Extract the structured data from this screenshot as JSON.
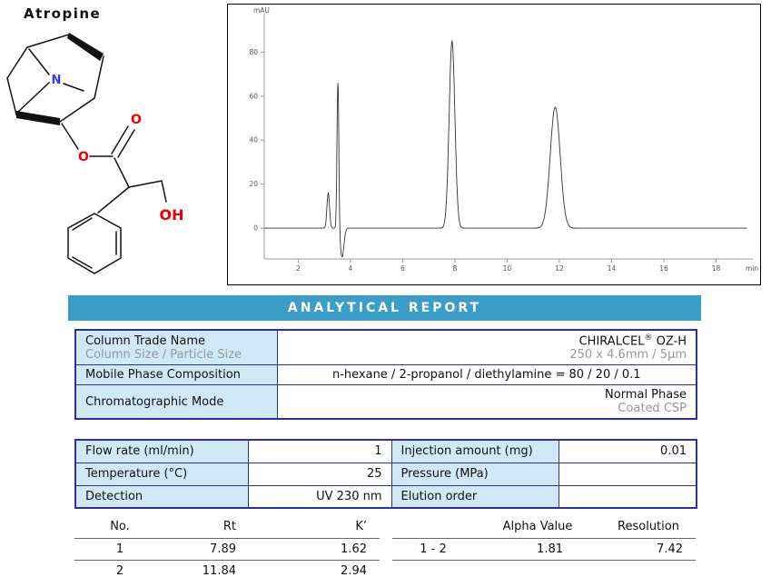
{
  "molecule": {
    "title": "Atropine",
    "n_label": "N",
    "ester_o_label": "O",
    "carbonyl_o_label": "O",
    "oh_label": "OH"
  },
  "report": {
    "title": "ANALYTICAL REPORT"
  },
  "colors": {
    "header_bg": "#3b9ec9",
    "table_border": "#2e3192",
    "label_cell_bg": "#cfe9f7",
    "muted_text": "#999999",
    "oxygen_red": "#ee0000",
    "nitrogen_blue": "#3333ff"
  },
  "conditions_table": {
    "rows": [
      {
        "label": "Column Trade Name",
        "sublabel": "Column Size / Particle Size",
        "value_brand": "CHIRALCEL",
        "value_reg": "®",
        "value_suffix": " OZ-H",
        "value_sub": "250 x 4.6mm / 5µm"
      },
      {
        "label": "Mobile Phase Composition",
        "value": "n-hexane / 2-propanol / diethylamine = 80 / 20 / 0.1"
      },
      {
        "label": "Chromatographic Mode",
        "value": "Normal Phase",
        "value_sub": "Coated CSP"
      }
    ]
  },
  "parameters_table": {
    "rows": [
      {
        "label_left": "Flow rate (ml/min)",
        "value_left": "1",
        "label_right": "Injection amount (mg)",
        "value_right": "0.01"
      },
      {
        "label_left": "Temperature (°C)",
        "value_left": "25",
        "label_right": "Pressure (MPa)",
        "value_right": ""
      },
      {
        "label_left": "Detection",
        "value_left": "UV 230 nm",
        "label_right": "Elution order",
        "value_right": ""
      }
    ]
  },
  "results_table": {
    "left": {
      "headers": [
        "No.",
        "Rt",
        "K’"
      ],
      "rows": [
        [
          "1",
          "7.89",
          "1.62"
        ],
        [
          "2",
          "11.84",
          "2.94"
        ]
      ]
    },
    "right": {
      "headers": [
        "",
        "Alpha Value",
        "Resolution"
      ],
      "rows": [
        [
          "1 - 2",
          "1.81",
          "7.42"
        ],
        [
          "",
          "",
          ""
        ]
      ]
    }
  },
  "chart_data": {
    "type": "line",
    "title": "",
    "ylabel": "mAU",
    "xlabel": "min",
    "xlim": [
      0.7,
      19.2
    ],
    "ylim": [
      -14,
      95
    ],
    "xticks": [
      2,
      4,
      6,
      8,
      10,
      12,
      14,
      16,
      18
    ],
    "yticks": [
      0,
      20,
      40,
      60,
      80
    ],
    "grid": false,
    "line_color": "#333333",
    "axis_color": "#999999",
    "peaks": [
      {
        "rt": 3.15,
        "height": 16,
        "sigma": 0.05
      },
      {
        "rt": 3.52,
        "height": 67,
        "sigma": 0.035
      },
      {
        "rt": 3.68,
        "height": -13,
        "sigma": 0.07
      },
      {
        "rt": 7.89,
        "height": 85,
        "sigma": 0.11
      },
      {
        "rt": 11.84,
        "height": 55,
        "sigma": 0.19
      }
    ]
  }
}
